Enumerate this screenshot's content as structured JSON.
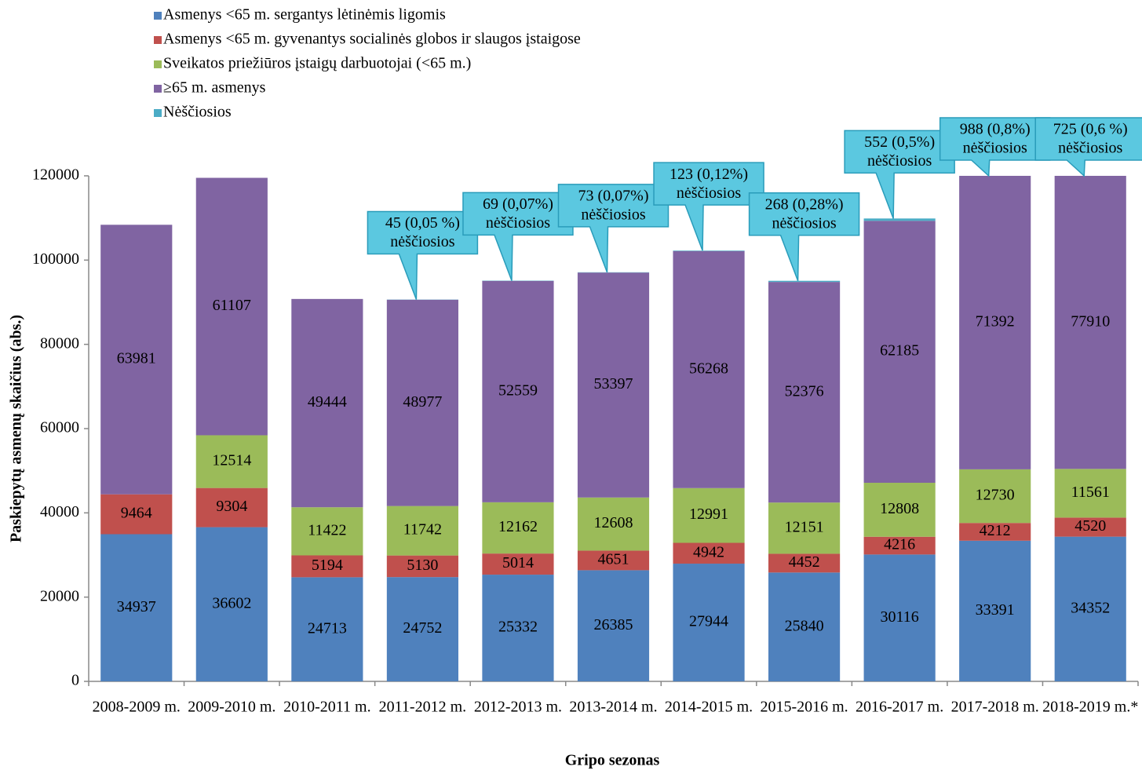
{
  "chart_data": {
    "type": "stacked_bar",
    "categories": [
      "2008-2009 m.",
      "2009-2010 m.",
      "2010-2011 m.",
      "2011-2012 m.",
      "2012-2013 m.",
      "2013-2014 m.",
      "2014-2015 m.",
      "2015-2016 m.",
      "2016-2017 m.",
      "2017-2018 m.",
      "2018-2019 m.*"
    ],
    "series": [
      {
        "name": "Asmenys <65 m. sergantys lėtinėmis ligomis",
        "color": "#4f81bd",
        "values": [
          34937,
          36602,
          24713,
          24752,
          25332,
          26385,
          27944,
          25840,
          30116,
          33391,
          34352
        ]
      },
      {
        "name": "Asmenys <65 m. gyvenantys socialinės globos ir slaugos įstaigose",
        "color": "#c0504d",
        "values": [
          9464,
          9304,
          5194,
          5130,
          5014,
          4651,
          4942,
          4452,
          4216,
          4212,
          4520
        ]
      },
      {
        "name": "Sveikatos priežiūros įstaigų darbuotojai (<65 m.)",
        "color": "#9bbb59",
        "values": [
          null,
          12514,
          11422,
          11742,
          12162,
          12608,
          12991,
          12151,
          12808,
          12730,
          11561
        ]
      },
      {
        "name": "≥65 m. asmenys",
        "color": "#8064a2",
        "values": [
          63981,
          61107,
          49444,
          48977,
          52559,
          53397,
          56268,
          52376,
          62185,
          71392,
          77910
        ]
      },
      {
        "name": "Nėščiosios",
        "color": "#4bacc6",
        "values": [
          null,
          null,
          null,
          45,
          69,
          73,
          123,
          268,
          552,
          988,
          725
        ],
        "value_labels": [
          null,
          null,
          null,
          "45 (0,05 %)",
          "69 (0,07%)",
          "73 (0,07%)",
          "123 (0,12%)",
          "268 (0,28%)",
          "552 (0,5%)",
          "988 (0,8%)",
          "725 (0,6 %)"
        ]
      }
    ],
    "callout_text": "nėščiosios",
    "y_label": "Paskiepytų asmenų skaičius (abs.)",
    "x_label": "Gripo sezonas",
    "ylim": [
      0,
      120000
    ],
    "yticks": [
      0,
      20000,
      40000,
      60000,
      80000,
      100000,
      120000
    ],
    "legend": "top-left",
    "grid": false
  }
}
